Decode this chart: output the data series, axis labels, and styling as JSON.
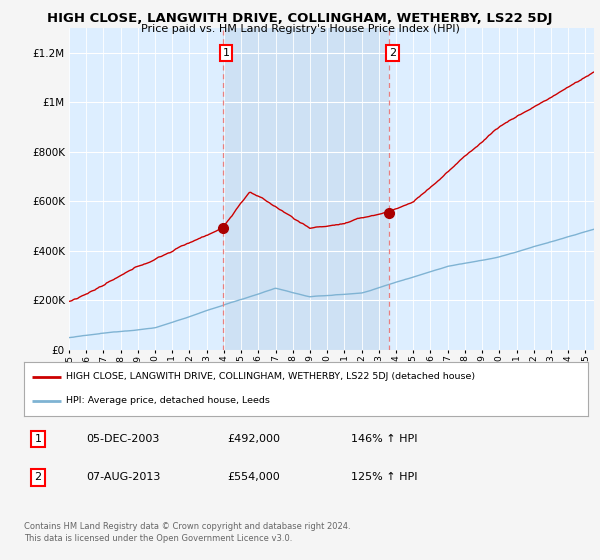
{
  "title": "HIGH CLOSE, LANGWITH DRIVE, COLLINGHAM, WETHERBY, LS22 5DJ",
  "subtitle": "Price paid vs. HM Land Registry's House Price Index (HPI)",
  "ylim": [
    0,
    1300000
  ],
  "yticks": [
    0,
    200000,
    400000,
    600000,
    800000,
    1000000,
    1200000
  ],
  "ytick_labels": [
    "£0",
    "£200K",
    "£400K",
    "£600K",
    "£800K",
    "£1M",
    "£1.2M"
  ],
  "x_start_year": 1995,
  "x_end_year": 2025,
  "sale1_date": 2003.92,
  "sale1_price": 492000,
  "sale1_label": "1",
  "sale2_date": 2013.58,
  "sale2_price": 554000,
  "sale2_label": "2",
  "hpi_color": "#7fb3d3",
  "price_color": "#cc0000",
  "sale_marker_color": "#aa0000",
  "vline_color": "#e88080",
  "background_color": "#ddeeff",
  "shade_color": "#c8dcf0",
  "fig_bg_color": "#f5f5f5",
  "legend_line1": "HIGH CLOSE, LANGWITH DRIVE, COLLINGHAM, WETHERBY, LS22 5DJ (detached house)",
  "legend_line2": "HPI: Average price, detached house, Leeds",
  "table_row1": [
    "1",
    "05-DEC-2003",
    "£492,000",
    "146% ↑ HPI"
  ],
  "table_row2": [
    "2",
    "07-AUG-2013",
    "£554,000",
    "125% ↑ HPI"
  ],
  "footer": "Contains HM Land Registry data © Crown copyright and database right 2024.\nThis data is licensed under the Open Government Licence v3.0."
}
